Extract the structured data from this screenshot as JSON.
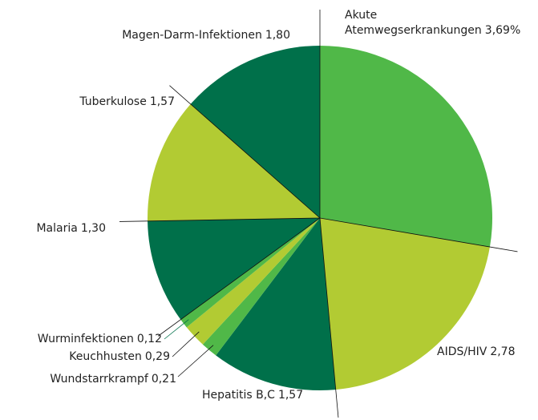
{
  "chart_data": {
    "type": "pie",
    "categories": [
      "Akute Atemwegserkrankungen",
      "AIDS/HIV",
      "Hepatitis B,C",
      "Wundstarrkrampf",
      "Keuchhusten",
      "Wurminfektionen",
      "Malaria",
      "Tuberkulose",
      "Magen-Darm-Infektionen"
    ],
    "values": [
      3.69,
      2.78,
      1.57,
      0.21,
      0.29,
      0.12,
      1.3,
      1.57,
      1.8
    ],
    "value_labels": [
      "3,69%",
      "2,78",
      "1,57",
      "0,21",
      "0,29",
      "0,12",
      "1,30",
      "1,57",
      "1,80"
    ],
    "colors": [
      "#50b848",
      "#b2cb33",
      "#00704a",
      "#50b848",
      "#b2cb33",
      "#50b848",
      "#00704a",
      "#b2cb33",
      "#00704a"
    ]
  }
}
